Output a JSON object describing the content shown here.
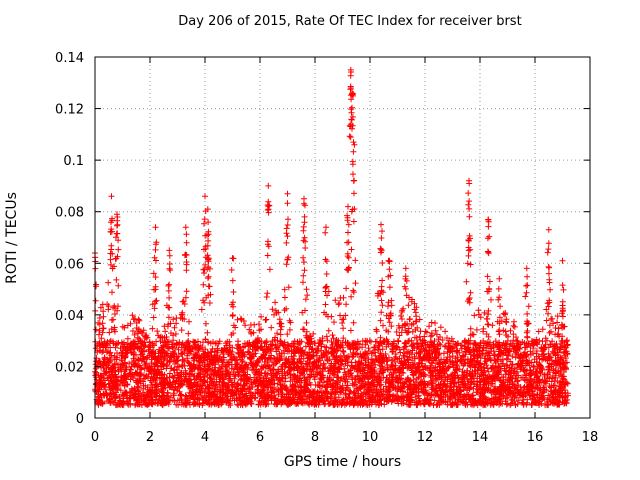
{
  "chart_data": {
    "type": "scatter",
    "title": "Day 206 of 2015, Rate Of TEC Index for receiver brst",
    "xlabel": "GPS time / hours",
    "ylabel": "ROTI / TECUs",
    "xlim": [
      0,
      18
    ],
    "ylim": [
      0,
      0.14
    ],
    "xticks": [
      0,
      2,
      4,
      6,
      8,
      10,
      12,
      14,
      16,
      18
    ],
    "yticks": [
      0,
      0.02,
      0.04,
      0.06,
      0.08,
      0.1,
      0.12,
      0.14
    ],
    "xtick_labels": [
      "0",
      "2",
      "4",
      "6",
      "8",
      "10",
      "12",
      "14",
      "16",
      "18"
    ],
    "ytick_labels": [
      "0",
      "0.02",
      "0.04",
      "0.06",
      "0.08",
      "0.1",
      "0.12",
      "0.14"
    ],
    "grid": true,
    "marker": "+",
    "color": "#ff0000",
    "data_x_range": [
      0,
      17.2
    ],
    "baseline_band": [
      0.005,
      0.03
    ],
    "peaks": [
      {
        "x": 0.0,
        "y": 0.064
      },
      {
        "x": 0.6,
        "y": 0.086
      },
      {
        "x": 0.8,
        "y": 0.079
      },
      {
        "x": 2.2,
        "y": 0.074
      },
      {
        "x": 2.7,
        "y": 0.065
      },
      {
        "x": 3.3,
        "y": 0.074
      },
      {
        "x": 4.0,
        "y": 0.086
      },
      {
        "x": 4.1,
        "y": 0.081
      },
      {
        "x": 5.0,
        "y": 0.062
      },
      {
        "x": 6.3,
        "y": 0.09
      },
      {
        "x": 7.0,
        "y": 0.087
      },
      {
        "x": 7.6,
        "y": 0.085
      },
      {
        "x": 8.4,
        "y": 0.074
      },
      {
        "x": 9.2,
        "y": 0.082
      },
      {
        "x": 9.3,
        "y": 0.135
      },
      {
        "x": 9.35,
        "y": 0.126
      },
      {
        "x": 9.4,
        "y": 0.107
      },
      {
        "x": 10.4,
        "y": 0.075
      },
      {
        "x": 10.7,
        "y": 0.061
      },
      {
        "x": 11.3,
        "y": 0.058
      },
      {
        "x": 13.6,
        "y": 0.092
      },
      {
        "x": 14.3,
        "y": 0.077
      },
      {
        "x": 14.7,
        "y": 0.054
      },
      {
        "x": 15.7,
        "y": 0.058
      },
      {
        "x": 16.5,
        "y": 0.073
      },
      {
        "x": 17.0,
        "y": 0.061
      }
    ]
  }
}
